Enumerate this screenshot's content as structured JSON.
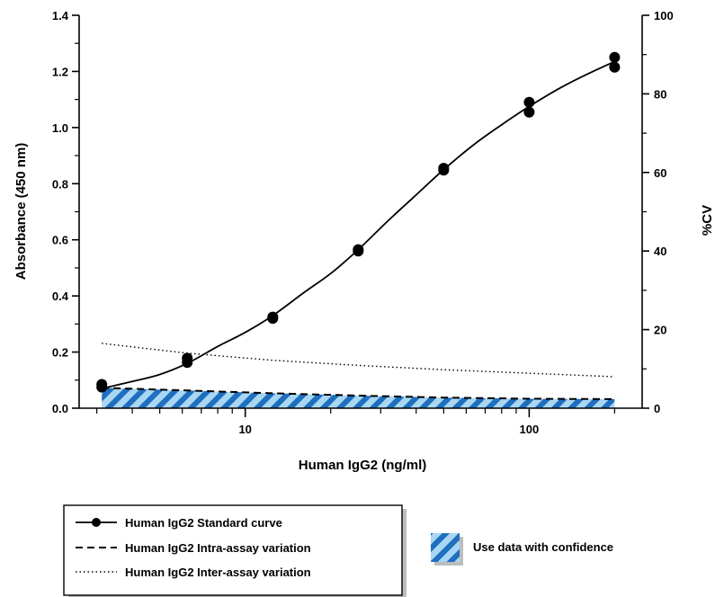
{
  "chart_data": {
    "type": "line",
    "xlabel": "Human IgG2 (ng/ml)",
    "ylabel": "Absorbance (450 nm)",
    "y2label": "%CV",
    "xscale": "log",
    "xlim": [
      2.6,
      250
    ],
    "ylim": [
      0,
      1.4
    ],
    "y2lim": [
      0,
      100
    ],
    "x_ticks": [
      10,
      100
    ],
    "x_tick_labels": [
      "10",
      "100"
    ],
    "y_ticks": [
      0.0,
      0.2,
      0.4,
      0.6,
      0.8,
      1.0,
      1.2,
      1.4
    ],
    "y_tick_labels": [
      "0.0",
      "0.2",
      "0.4",
      "0.6",
      "0.8",
      "1.0",
      "1.2",
      "1.4"
    ],
    "y2_ticks": [
      0,
      20,
      40,
      60,
      80,
      100
    ],
    "y2_tick_labels": [
      "0",
      "20",
      "40",
      "60",
      "80",
      "100"
    ],
    "grid": false,
    "legend_position": "bottom",
    "series": [
      {
        "name": "Human IgG2 Standard curve",
        "axis": "left",
        "style": "solid-with-markers",
        "points": [
          {
            "x": 3.125,
            "y": 0.085
          },
          {
            "x": 3.125,
            "y": 0.075
          },
          {
            "x": 6.25,
            "y": 0.178
          },
          {
            "x": 6.25,
            "y": 0.163
          },
          {
            "x": 12.5,
            "y": 0.325
          },
          {
            "x": 12.5,
            "y": 0.32
          },
          {
            "x": 25,
            "y": 0.565
          },
          {
            "x": 25,
            "y": 0.56
          },
          {
            "x": 50,
            "y": 0.855
          },
          {
            "x": 50,
            "y": 0.848
          },
          {
            "x": 100,
            "y": 1.09
          },
          {
            "x": 100,
            "y": 1.055
          },
          {
            "x": 200,
            "y": 1.25
          },
          {
            "x": 200,
            "y": 1.215
          }
        ],
        "curve": [
          {
            "x": 3.125,
            "y": 0.07
          },
          {
            "x": 4,
            "y": 0.095
          },
          {
            "x": 5,
            "y": 0.12
          },
          {
            "x": 6.25,
            "y": 0.16
          },
          {
            "x": 8,
            "y": 0.22
          },
          {
            "x": 10,
            "y": 0.27
          },
          {
            "x": 12.5,
            "y": 0.33
          },
          {
            "x": 16,
            "y": 0.41
          },
          {
            "x": 20,
            "y": 0.48
          },
          {
            "x": 25,
            "y": 0.565
          },
          {
            "x": 32,
            "y": 0.67
          },
          {
            "x": 40,
            "y": 0.76
          },
          {
            "x": 50,
            "y": 0.85
          },
          {
            "x": 64,
            "y": 0.94
          },
          {
            "x": 80,
            "y": 1.01
          },
          {
            "x": 100,
            "y": 1.075
          },
          {
            "x": 128,
            "y": 1.14
          },
          {
            "x": 160,
            "y": 1.19
          },
          {
            "x": 200,
            "y": 1.235
          }
        ]
      },
      {
        "name": "Human IgG2 Intra-assay variation",
        "axis": "right",
        "style": "dashed",
        "points": [
          {
            "x": 3.125,
            "y": 5.2
          },
          {
            "x": 6.25,
            "y": 4.5
          },
          {
            "x": 12.5,
            "y": 3.8
          },
          {
            "x": 25,
            "y": 3.2
          },
          {
            "x": 50,
            "y": 2.7
          },
          {
            "x": 100,
            "y": 2.4
          },
          {
            "x": 200,
            "y": 2.3
          }
        ]
      },
      {
        "name": "Human IgG2 Inter-assay variation",
        "axis": "right",
        "style": "dotted",
        "points": [
          {
            "x": 3.125,
            "y": 16.5
          },
          {
            "x": 6.25,
            "y": 14.0
          },
          {
            "x": 12.5,
            "y": 12.2
          },
          {
            "x": 25,
            "y": 10.9
          },
          {
            "x": 50,
            "y": 9.8
          },
          {
            "x": 100,
            "y": 8.9
          },
          {
            "x": 200,
            "y": 8.0
          }
        ]
      }
    ],
    "confidence_region": {
      "label": "Use data with confidence",
      "x_range": [
        3.125,
        200
      ],
      "fill_color": "#9ecfee",
      "stripe_color": "#1f6fbf"
    },
    "legend": {
      "items": [
        "Human IgG2 Standard curve",
        "Human IgG2 Intra-assay variation",
        "Human IgG2 Inter-assay variation"
      ],
      "confidence_label": "Use data with confidence"
    }
  }
}
